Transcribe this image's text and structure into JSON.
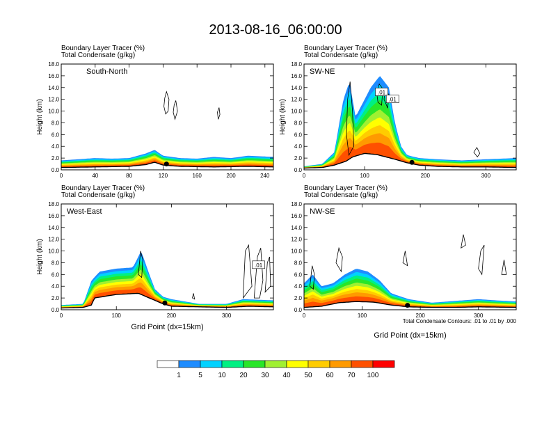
{
  "title": "2013-08-16_06:00:00",
  "chart_data": [
    {
      "type": "area",
      "panel_label": "South-North",
      "header_line1": "Boundary Layer Tracer   (%)",
      "header_line2": "Total Condensate   (g/kg)",
      "ylabel": "Height (km)",
      "xlabel": "",
      "xlim": [
        0,
        250
      ],
      "ylim": [
        0,
        18
      ],
      "xticks": [
        "0",
        "40",
        "80",
        "120",
        "160",
        "200",
        "240"
      ],
      "xtick_values": [
        0,
        40,
        80,
        120,
        160,
        200,
        240
      ],
      "yticks": [
        "0.0",
        "2.0",
        "4.0",
        "6.0",
        "8.0",
        "10.0",
        "12.0",
        "14.0",
        "16.0",
        "18.0"
      ],
      "terrain": [
        [
          0,
          0.4
        ],
        [
          20,
          0.45
        ],
        [
          40,
          0.5
        ],
        [
          60,
          0.55
        ],
        [
          80,
          0.6
        ],
        [
          100,
          0.9
        ],
        [
          110,
          1.3
        ],
        [
          120,
          0.8
        ],
        [
          140,
          0.6
        ],
        [
          160,
          0.55
        ],
        [
          180,
          0.5
        ],
        [
          200,
          0.55
        ],
        [
          220,
          0.6
        ],
        [
          250,
          0.5
        ]
      ],
      "tracer_top": [
        [
          0,
          1.6
        ],
        [
          20,
          1.8
        ],
        [
          40,
          2.0
        ],
        [
          60,
          1.9
        ],
        [
          80,
          2.0
        ],
        [
          100,
          2.8
        ],
        [
          110,
          3.4
        ],
        [
          120,
          2.4
        ],
        [
          140,
          2.0
        ],
        [
          160,
          1.9
        ],
        [
          180,
          2.2
        ],
        [
          200,
          2.0
        ],
        [
          220,
          2.4
        ],
        [
          250,
          2.2
        ]
      ],
      "clouds": [
        [
          [
            122,
            12.2
          ],
          [
            124,
            13.3
          ],
          [
            127,
            12.0
          ],
          [
            126,
            10.0
          ],
          [
            123,
            9.5
          ],
          [
            121,
            10.8
          ]
        ],
        [
          [
            133,
            11.0
          ],
          [
            135,
            11.8
          ],
          [
            137,
            10.0
          ],
          [
            134,
            8.6
          ],
          [
            132,
            9.8
          ]
        ],
        [
          [
            184,
            9.8
          ],
          [
            186,
            10.6
          ],
          [
            187,
            9.4
          ],
          [
            185,
            8.6
          ]
        ]
      ],
      "marker_x": 124
    },
    {
      "type": "area",
      "panel_label": "SW-NE",
      "header_line1": "Boundary Layer Tracer   (%)",
      "header_line2": "Total Condensate   (g/kg)",
      "ylabel": "Height (km)",
      "xlabel": "",
      "xlim": [
        0,
        350
      ],
      "ylim": [
        0,
        18
      ],
      "xticks": [
        "0",
        "100",
        "200",
        "300"
      ],
      "xtick_values": [
        0,
        100,
        200,
        300
      ],
      "yticks": [
        "0.0",
        "2.0",
        "4.0",
        "6.0",
        "8.0",
        "10.0",
        "12.0",
        "14.0",
        "16.0",
        "18.0"
      ],
      "terrain": [
        [
          0,
          0.3
        ],
        [
          30,
          0.4
        ],
        [
          50,
          0.8
        ],
        [
          70,
          1.5
        ],
        [
          80,
          2.2
        ],
        [
          100,
          2.8
        ],
        [
          120,
          2.6
        ],
        [
          150,
          1.8
        ],
        [
          170,
          1.2
        ],
        [
          190,
          0.8
        ],
        [
          220,
          0.6
        ],
        [
          260,
          0.5
        ],
        [
          300,
          0.5
        ],
        [
          350,
          0.4
        ]
      ],
      "tracer_top": [
        [
          0,
          0.6
        ],
        [
          30,
          1.0
        ],
        [
          50,
          3.0
        ],
        [
          65,
          12.0
        ],
        [
          75,
          15.0
        ],
        [
          85,
          9.0
        ],
        [
          100,
          12.0
        ],
        [
          110,
          14.0
        ],
        [
          125,
          16.0
        ],
        [
          140,
          14.0
        ],
        [
          150,
          8.0
        ],
        [
          160,
          4.0
        ],
        [
          170,
          2.5
        ],
        [
          190,
          2.0
        ],
        [
          220,
          1.8
        ],
        [
          260,
          1.6
        ],
        [
          300,
          1.8
        ],
        [
          350,
          2.0
        ]
      ],
      "clouds": [
        [
          [
            70,
            6.0
          ],
          [
            72,
            12.0
          ],
          [
            76,
            15.0
          ],
          [
            80,
            10.0
          ],
          [
            82,
            4.0
          ],
          [
            74,
            2.5
          ]
        ],
        [
          [
            120,
            13.0
          ],
          [
            124,
            14.6
          ],
          [
            130,
            13.8
          ],
          [
            128,
            11.0
          ],
          [
            122,
            11.5
          ]
        ],
        [
          [
            132,
            12.0
          ],
          [
            134,
            13.5
          ],
          [
            140,
            12.8
          ],
          [
            138,
            10.5
          ]
        ],
        [
          [
            280,
            3.0
          ],
          [
            285,
            3.8
          ],
          [
            290,
            2.8
          ],
          [
            286,
            2.2
          ]
        ]
      ],
      "box_labels": [
        {
          "text": ".01",
          "x": 128,
          "y": 13.2
        },
        {
          "text": ".01",
          "x": 146,
          "y": 12.0
        }
      ],
      "marker_x": 178
    },
    {
      "type": "area",
      "panel_label": "West-East",
      "header_line1": "Boundary Layer Tracer   (%)",
      "header_line2": "Total Condensate   (g/kg)",
      "ylabel": "Height (km)",
      "xlabel": "Grid Point (dx=15km)",
      "xlim": [
        0,
        385
      ],
      "ylim": [
        0,
        18
      ],
      "xticks": [
        "0",
        "100",
        "200",
        "300"
      ],
      "xtick_values": [
        0,
        100,
        200,
        300
      ],
      "yticks": [
        "0.0",
        "2.0",
        "4.0",
        "6.0",
        "8.0",
        "10.0",
        "12.0",
        "14.0",
        "16.0",
        "18.0"
      ],
      "terrain": [
        [
          0,
          0.3
        ],
        [
          40,
          0.4
        ],
        [
          55,
          0.8
        ],
        [
          60,
          2.0
        ],
        [
          100,
          2.6
        ],
        [
          140,
          2.8
        ],
        [
          165,
          1.8
        ],
        [
          185,
          1.0
        ],
        [
          200,
          0.6
        ],
        [
          250,
          0.5
        ],
        [
          300,
          0.4
        ],
        [
          340,
          0.6
        ],
        [
          385,
          0.5
        ]
      ],
      "tracer_top": [
        [
          0,
          0.8
        ],
        [
          40,
          1.0
        ],
        [
          55,
          5.0
        ],
        [
          70,
          6.5
        ],
        [
          100,
          7.0
        ],
        [
          130,
          7.2
        ],
        [
          145,
          10.0
        ],
        [
          160,
          6.0
        ],
        [
          170,
          3.5
        ],
        [
          185,
          2.2
        ],
        [
          200,
          1.8
        ],
        [
          250,
          1.0
        ],
        [
          300,
          1.0
        ],
        [
          330,
          1.8
        ],
        [
          385,
          1.6
        ]
      ],
      "clouds": [
        [
          [
            140,
            6.0
          ],
          [
            144,
            10.0
          ],
          [
            148,
            8.5
          ],
          [
            146,
            5.5
          ]
        ],
        [
          [
            238,
            2.0
          ],
          [
            240,
            2.8
          ],
          [
            242,
            1.8
          ]
        ],
        [
          [
            330,
            2.0
          ],
          [
            334,
            10.0
          ],
          [
            340,
            11.0
          ],
          [
            346,
            4.0
          ]
        ],
        [
          [
            350,
            2.0
          ],
          [
            356,
            9.0
          ],
          [
            362,
            10.5
          ],
          [
            366,
            5.0
          ],
          [
            360,
            2.0
          ]
        ],
        [
          [
            370,
            3.0
          ],
          [
            374,
            8.0
          ],
          [
            378,
            9.0
          ],
          [
            380,
            4.0
          ]
        ]
      ],
      "box_labels": [
        {
          "text": ".01",
          "x": 358,
          "y": 7.6
        }
      ],
      "marker_x": 188
    },
    {
      "type": "area",
      "panel_label": "NW-SE",
      "header_line1": "Boundary Layer Tracer   (%)",
      "header_line2": "Total Condensate   (g/kg)",
      "ylabel": "",
      "xlabel": "Grid Point (dx=15km)",
      "xlim": [
        0,
        365
      ],
      "ylim": [
        0,
        18
      ],
      "xticks": [
        "0",
        "100",
        "200",
        "300"
      ],
      "xtick_values": [
        0,
        100,
        200,
        300
      ],
      "yticks": [
        "0.0",
        "2.0",
        "4.0",
        "6.0",
        "8.0",
        "10.0",
        "12.0",
        "14.0",
        "16.0",
        "18.0"
      ],
      "terrain": [
        [
          0,
          0.4
        ],
        [
          30,
          0.6
        ],
        [
          60,
          1.2
        ],
        [
          90,
          1.4
        ],
        [
          120,
          1.3
        ],
        [
          150,
          0.8
        ],
        [
          180,
          0.5
        ],
        [
          220,
          0.4
        ],
        [
          260,
          0.4
        ],
        [
          300,
          0.5
        ],
        [
          365,
          0.4
        ]
      ],
      "tracer_top": [
        [
          0,
          4.5
        ],
        [
          15,
          6.0
        ],
        [
          30,
          4.0
        ],
        [
          50,
          4.5
        ],
        [
          70,
          6.0
        ],
        [
          90,
          7.0
        ],
        [
          110,
          6.5
        ],
        [
          130,
          5.0
        ],
        [
          150,
          2.8
        ],
        [
          180,
          1.8
        ],
        [
          220,
          1.2
        ],
        [
          260,
          1.5
        ],
        [
          300,
          1.8
        ],
        [
          330,
          1.6
        ],
        [
          365,
          1.4
        ]
      ],
      "clouds": [
        [
          [
            10,
            4.0
          ],
          [
            14,
            7.5
          ],
          [
            18,
            6.0
          ],
          [
            16,
            3.5
          ]
        ],
        [
          [
            55,
            8.0
          ],
          [
            60,
            10.5
          ],
          [
            66,
            9.0
          ],
          [
            64,
            6.5
          ]
        ],
        [
          [
            170,
            8.0
          ],
          [
            174,
            10.0
          ],
          [
            178,
            7.5
          ]
        ],
        [
          [
            270,
            10.5
          ],
          [
            274,
            12.8
          ],
          [
            278,
            11.0
          ]
        ],
        [
          [
            300,
            7.0
          ],
          [
            304,
            10.0
          ],
          [
            310,
            11.0
          ],
          [
            306,
            6.0
          ]
        ],
        [
          [
            340,
            6.0
          ],
          [
            344,
            8.5
          ],
          [
            348,
            6.0
          ]
        ]
      ],
      "marker_x": 178
    }
  ],
  "condensate_note": "Total Condensate Contours: .01 to .01 by .000",
  "legend": {
    "labels": [
      "1",
      "5",
      "10",
      "20",
      "30",
      "40",
      "50",
      "60",
      "70",
      "100"
    ],
    "colors": [
      "#ffffff",
      "#1e8cff",
      "#00d2ff",
      "#00f082",
      "#28e628",
      "#a0f032",
      "#ffff00",
      "#ffcc00",
      "#ff9a00",
      "#ff5000",
      "#ff0000"
    ]
  }
}
